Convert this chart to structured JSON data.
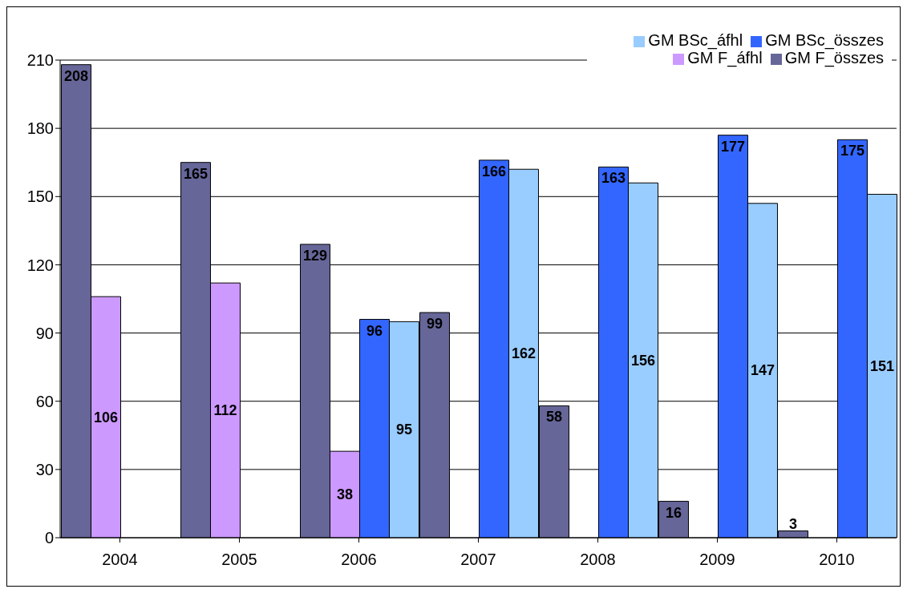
{
  "chart_data": {
    "type": "bar",
    "categories": [
      "2004",
      "2005",
      "2006",
      "2007",
      "2008",
      "2009",
      "2010"
    ],
    "series": [
      {
        "name": "GM F_összes",
        "color": "#666699",
        "values": [
          208,
          165,
          129,
          99,
          58,
          16,
          3
        ]
      },
      {
        "name": "GM F_áfhl",
        "color": "#cc99ff",
        "values": [
          106,
          112,
          38,
          null,
          null,
          null,
          null
        ]
      },
      {
        "name": "GM BSc_összes",
        "color": "#3366ff",
        "values": [
          null,
          null,
          96,
          166,
          163,
          177,
          175
        ]
      },
      {
        "name": "GM BSc_áfhl",
        "color": "#99ccff",
        "values": [
          null,
          null,
          95,
          162,
          156,
          147,
          151
        ]
      }
    ],
    "ylim": [
      0,
      210
    ],
    "yticks": [
      0,
      30,
      60,
      90,
      120,
      150,
      180,
      210
    ],
    "grid": "y",
    "legend": "top right",
    "data_labels": true
  }
}
